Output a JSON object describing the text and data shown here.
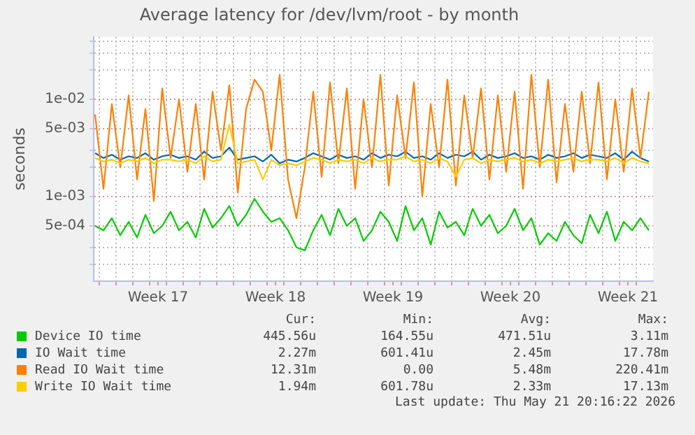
{
  "chart_data": {
    "type": "line",
    "title": "Average latency for /dev/lvm/root - by month",
    "ylabel": "seconds",
    "log": "y",
    "grid": true,
    "legend": "bottom",
    "marker": "none",
    "line_style": "solid",
    "xlim": [
      "2026-04-18T16:00",
      "2026-05-22T00:00"
    ],
    "ylim": [
      0.000135,
      0.044
    ],
    "yticks": [
      {
        "value": 0.0002,
        "label": null
      },
      {
        "value": 0.0003,
        "label": null
      },
      {
        "value": 0.0005,
        "label": "5e-04"
      },
      {
        "value": 0.001,
        "label": "1e-03"
      },
      {
        "value": 0.002,
        "label": null
      },
      {
        "value": 0.003,
        "label": null
      },
      {
        "value": 0.005,
        "label": "5e-03"
      },
      {
        "value": 0.01,
        "label": "1e-02"
      },
      {
        "value": 0.02,
        "label": null
      },
      {
        "value": 0.03,
        "label": null
      },
      {
        "value": 0.04,
        "label": null
      }
    ],
    "xticks": [
      {
        "value": "2026-04-19",
        "label": null
      },
      {
        "value": "2026-04-20",
        "label": null
      },
      {
        "value": "2026-04-21",
        "label": null
      },
      {
        "value": "2026-04-22",
        "label": null
      },
      {
        "value": "2026-04-22T12:00",
        "label": "Week 17"
      },
      {
        "value": "2026-04-23",
        "label": null
      },
      {
        "value": "2026-04-24",
        "label": null
      },
      {
        "value": "2026-04-25",
        "label": null
      },
      {
        "value": "2026-04-26",
        "label": null
      },
      {
        "value": "2026-04-27",
        "label": null
      },
      {
        "value": "2026-04-28",
        "label": null
      },
      {
        "value": "2026-04-29",
        "label": null
      },
      {
        "value": "2026-04-29T12:00",
        "label": "Week 18"
      },
      {
        "value": "2026-04-30",
        "label": null
      },
      {
        "value": "2026-05-01",
        "label": null
      },
      {
        "value": "2026-05-02",
        "label": null
      },
      {
        "value": "2026-05-03",
        "label": null
      },
      {
        "value": "2026-05-04",
        "label": null
      },
      {
        "value": "2026-05-05",
        "label": null
      },
      {
        "value": "2026-05-06",
        "label": null
      },
      {
        "value": "2026-05-06T12:00",
        "label": "Week 19"
      },
      {
        "value": "2026-05-07",
        "label": null
      },
      {
        "value": "2026-05-08",
        "label": null
      },
      {
        "value": "2026-05-09",
        "label": null
      },
      {
        "value": "2026-05-10",
        "label": null
      },
      {
        "value": "2026-05-11",
        "label": null
      },
      {
        "value": "2026-05-12",
        "label": null
      },
      {
        "value": "2026-05-13",
        "label": null
      },
      {
        "value": "2026-05-13T12:00",
        "label": "Week 20"
      },
      {
        "value": "2026-05-14",
        "label": null
      },
      {
        "value": "2026-05-15",
        "label": null
      },
      {
        "value": "2026-05-16",
        "label": null
      },
      {
        "value": "2026-05-17",
        "label": null
      },
      {
        "value": "2026-05-18",
        "label": null
      },
      {
        "value": "2026-05-19",
        "label": null
      },
      {
        "value": "2026-05-20",
        "label": null
      },
      {
        "value": "2026-05-20T12:00",
        "label": "Week 21"
      },
      {
        "value": "2026-05-21",
        "label": null
      }
    ],
    "x": [
      "2026-04-18T18:00",
      "2026-04-19T06:00",
      "2026-04-19T18:00",
      "2026-04-20T06:00",
      "2026-04-20T18:00",
      "2026-04-21T06:00",
      "2026-04-21T18:00",
      "2026-04-22T06:00",
      "2026-04-22T18:00",
      "2026-04-23T06:00",
      "2026-04-23T18:00",
      "2026-04-24T06:00",
      "2026-04-24T18:00",
      "2026-04-25T06:00",
      "2026-04-25T18:00",
      "2026-04-26T06:00",
      "2026-04-26T18:00",
      "2026-04-27T06:00",
      "2026-04-27T18:00",
      "2026-04-28T06:00",
      "2026-04-28T18:00",
      "2026-04-29T06:00",
      "2026-04-29T18:00",
      "2026-04-30T06:00",
      "2026-04-30T18:00",
      "2026-05-01T06:00",
      "2026-05-01T18:00",
      "2026-05-02T06:00",
      "2026-05-02T18:00",
      "2026-05-03T06:00",
      "2026-05-03T18:00",
      "2026-05-04T06:00",
      "2026-05-04T18:00",
      "2026-05-05T06:00",
      "2026-05-05T18:00",
      "2026-05-06T06:00",
      "2026-05-06T18:00",
      "2026-05-07T06:00",
      "2026-05-07T18:00",
      "2026-05-08T06:00",
      "2026-05-08T18:00",
      "2026-05-09T06:00",
      "2026-05-09T18:00",
      "2026-05-10T06:00",
      "2026-05-10T18:00",
      "2026-05-11T06:00",
      "2026-05-11T18:00",
      "2026-05-12T06:00",
      "2026-05-12T18:00",
      "2026-05-13T06:00",
      "2026-05-13T18:00",
      "2026-05-14T06:00",
      "2026-05-14T18:00",
      "2026-05-15T06:00",
      "2026-05-15T18:00",
      "2026-05-16T06:00",
      "2026-05-16T18:00",
      "2026-05-17T06:00",
      "2026-05-17T18:00",
      "2026-05-18T06:00",
      "2026-05-18T18:00",
      "2026-05-19T06:00",
      "2026-05-19T18:00",
      "2026-05-20T06:00",
      "2026-05-20T18:00",
      "2026-05-21T06:00",
      "2026-05-21T18:00"
    ],
    "series": [
      {
        "name": "Device IO time",
        "color": "#00cc00",
        "values": [
          0.0005,
          0.00045,
          0.0006,
          0.0004,
          0.00055,
          0.00038,
          0.00065,
          0.00042,
          0.0005,
          0.0007,
          0.00045,
          0.00055,
          0.00038,
          0.00075,
          0.00048,
          0.0006,
          0.0008,
          0.0005,
          0.00065,
          0.00095,
          0.0007,
          0.00055,
          0.0006,
          0.00045,
          0.0003,
          0.00028,
          0.00045,
          0.00065,
          0.0004,
          0.00075,
          0.0005,
          0.0006,
          0.00035,
          0.00045,
          0.0007,
          0.00055,
          0.00035,
          0.0008,
          0.00045,
          0.0006,
          0.00032,
          0.0007,
          0.00048,
          0.00055,
          0.0004,
          0.00075,
          0.0005,
          0.00065,
          0.00042,
          0.0005,
          0.00075,
          0.00045,
          0.0006,
          0.00032,
          0.00042,
          0.00035,
          0.00055,
          0.0004,
          0.00033,
          0.00065,
          0.00042,
          0.0007,
          0.00035,
          0.00055,
          0.00045,
          0.0006,
          0.00045
        ]
      },
      {
        "name": "IO Wait time",
        "color": "#0066b3",
        "values": [
          0.0028,
          0.0025,
          0.0027,
          0.0024,
          0.0026,
          0.0025,
          0.0028,
          0.0024,
          0.0026,
          0.0027,
          0.0025,
          0.0026,
          0.0024,
          0.0029,
          0.0025,
          0.0026,
          0.0032,
          0.0024,
          0.0025,
          0.0026,
          0.0023,
          0.0027,
          0.0022,
          0.0024,
          0.0023,
          0.0025,
          0.0028,
          0.0026,
          0.0024,
          0.0027,
          0.0025,
          0.0026,
          0.0024,
          0.0028,
          0.0025,
          0.0027,
          0.0026,
          0.0029,
          0.0025,
          0.0026,
          0.0024,
          0.0028,
          0.0025,
          0.0027,
          0.0026,
          0.0029,
          0.0024,
          0.0027,
          0.0025,
          0.0026,
          0.0028,
          0.0025,
          0.0026,
          0.0024,
          0.0027,
          0.0025,
          0.0026,
          0.0028,
          0.0025,
          0.0027,
          0.0026,
          0.0025,
          0.0028,
          0.0024,
          0.0029,
          0.0025,
          0.0023
        ]
      },
      {
        "name": "Read IO Wait time",
        "color": "#ff8000",
        "values": [
          0.007,
          0.0012,
          0.009,
          0.002,
          0.011,
          0.0015,
          0.008,
          0.0009,
          0.013,
          0.0025,
          0.01,
          0.0018,
          0.009,
          0.0015,
          0.012,
          0.003,
          0.014,
          0.0011,
          0.008,
          0.016,
          0.012,
          0.003,
          0.018,
          0.0015,
          0.0006,
          0.002,
          0.012,
          0.0016,
          0.015,
          0.0022,
          0.013,
          0.0012,
          0.01,
          0.002,
          0.018,
          0.0013,
          0.011,
          0.0025,
          0.015,
          0.001,
          0.009,
          0.002,
          0.016,
          0.0013,
          0.011,
          0.0025,
          0.013,
          0.0015,
          0.011,
          0.0018,
          0.012,
          0.0012,
          0.018,
          0.002,
          0.016,
          0.0014,
          0.009,
          0.0018,
          0.012,
          0.0022,
          0.015,
          0.0015,
          0.01,
          0.0018,
          0.013,
          0.0025,
          0.012
        ]
      },
      {
        "name": "Write IO Wait time",
        "color": "#ffcc00",
        "values": [
          0.0025,
          0.0023,
          0.0024,
          0.0022,
          0.0024,
          0.0023,
          0.0025,
          0.0022,
          0.0024,
          0.0024,
          0.0023,
          0.0024,
          0.0022,
          0.0026,
          0.0023,
          0.0024,
          0.0055,
          0.0022,
          0.0023,
          0.0024,
          0.0015,
          0.0024,
          0.0021,
          0.0022,
          0.0021,
          0.0023,
          0.0025,
          0.0024,
          0.0022,
          0.0024,
          0.0023,
          0.0024,
          0.0022,
          0.0025,
          0.0023,
          0.0024,
          0.0024,
          0.0026,
          0.0023,
          0.0024,
          0.0022,
          0.0025,
          0.0023,
          0.0016,
          0.0024,
          0.0025,
          0.0022,
          0.0024,
          0.0023,
          0.0024,
          0.0025,
          0.0023,
          0.0024,
          0.0022,
          0.0024,
          0.0023,
          0.0024,
          0.0025,
          0.0023,
          0.0024,
          0.0024,
          0.0023,
          0.0025,
          0.0022,
          0.0025,
          0.0023,
          0.0022
        ]
      }
    ],
    "annotations": [
      "Cur:",
      "Min:",
      "Avg:",
      "Max:",
      "445.56u",
      "164.55u",
      "471.51u",
      "3.11m",
      "2.27m",
      "601.41u",
      "2.45m",
      "17.78m",
      "12.31m",
      "0.00",
      "5.48m",
      "220.41m",
      "1.94m",
      "601.78u",
      "2.33m",
      "17.13m",
      "Last update: Thu May 21 20:16:22 2026"
    ]
  }
}
